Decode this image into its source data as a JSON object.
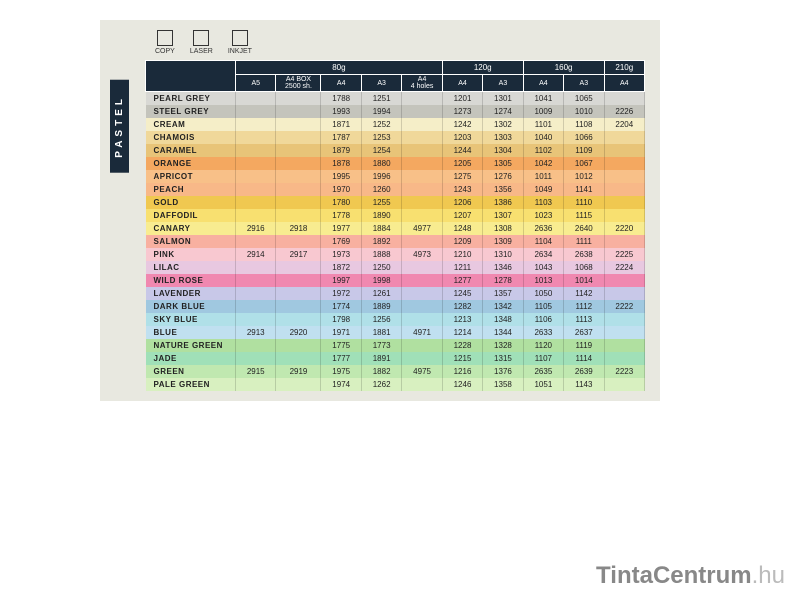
{
  "sideLabel": "PASTEL",
  "iconLabels": [
    "COPY",
    "LASER",
    "INKJET"
  ],
  "weightGroups": [
    "80g",
    "120g",
    "160g",
    "210g"
  ],
  "subHeaders": [
    "A5",
    "A4 BOX\n2500 sh.",
    "A4",
    "A3",
    "A4\n4 holes",
    "A4",
    "A3",
    "A4",
    "A3",
    "A4"
  ],
  "rows": [
    {
      "name": "PEARL GREY",
      "color": "#d8d8d4",
      "v": [
        "",
        "",
        "1788",
        "1251",
        "",
        "1201",
        "1301",
        "1041",
        "1065",
        ""
      ]
    },
    {
      "name": "STEEL GREY",
      "color": "#c4c4bc",
      "v": [
        "",
        "",
        "1993",
        "1994",
        "",
        "1273",
        "1274",
        "1009",
        "1010",
        "2226"
      ]
    },
    {
      "name": "CREAM",
      "color": "#f5eec8",
      "v": [
        "",
        "",
        "1871",
        "1252",
        "",
        "1242",
        "1302",
        "1101",
        "1108",
        "2204"
      ]
    },
    {
      "name": "CHAMOIS",
      "color": "#f0d89a",
      "v": [
        "",
        "",
        "1787",
        "1253",
        "",
        "1203",
        "1303",
        "1040",
        "1066",
        ""
      ]
    },
    {
      "name": "CARAMEL",
      "color": "#e8c478",
      "v": [
        "",
        "",
        "1879",
        "1254",
        "",
        "1244",
        "1304",
        "1102",
        "1109",
        ""
      ]
    },
    {
      "name": "ORANGE",
      "color": "#f4a860",
      "v": [
        "",
        "",
        "1878",
        "1880",
        "",
        "1205",
        "1305",
        "1042",
        "1067",
        ""
      ]
    },
    {
      "name": "APRICOT",
      "color": "#f8c088",
      "v": [
        "",
        "",
        "1995",
        "1996",
        "",
        "1275",
        "1276",
        "1011",
        "1012",
        ""
      ]
    },
    {
      "name": "PEACH",
      "color": "#f8b888",
      "v": [
        "",
        "",
        "1970",
        "1260",
        "",
        "1243",
        "1356",
        "1049",
        "1141",
        ""
      ]
    },
    {
      "name": "GOLD",
      "color": "#f0c850",
      "v": [
        "",
        "",
        "1780",
        "1255",
        "",
        "1206",
        "1386",
        "1103",
        "1110",
        ""
      ]
    },
    {
      "name": "DAFFODIL",
      "color": "#f8e070",
      "v": [
        "",
        "",
        "1778",
        "1890",
        "",
        "1207",
        "1307",
        "1023",
        "1115",
        ""
      ]
    },
    {
      "name": "CANARY",
      "color": "#f8ec90",
      "v": [
        "2916",
        "2918",
        "1977",
        "1884",
        "4977",
        "1248",
        "1308",
        "2636",
        "2640",
        "2220"
      ]
    },
    {
      "name": "SALMON",
      "color": "#f8b0a0",
      "v": [
        "",
        "",
        "1769",
        "1892",
        "",
        "1209",
        "1309",
        "1104",
        "1111",
        ""
      ]
    },
    {
      "name": "PINK",
      "color": "#f8c8d0",
      "v": [
        "2914",
        "2917",
        "1973",
        "1888",
        "4973",
        "1210",
        "1310",
        "2634",
        "2638",
        "2225"
      ]
    },
    {
      "name": "LILAC",
      "color": "#e8c8e0",
      "v": [
        "",
        "",
        "1872",
        "1250",
        "",
        "1211",
        "1346",
        "1043",
        "1068",
        "2224"
      ]
    },
    {
      "name": "WILD ROSE",
      "color": "#f088b0",
      "v": [
        "",
        "",
        "1997",
        "1998",
        "",
        "1277",
        "1278",
        "1013",
        "1014",
        ""
      ]
    },
    {
      "name": "LAVENDER",
      "color": "#c8c8e8",
      "v": [
        "",
        "",
        "1972",
        "1261",
        "",
        "1245",
        "1357",
        "1050",
        "1142",
        ""
      ]
    },
    {
      "name": "DARK BLUE",
      "color": "#a0c8e0",
      "v": [
        "",
        "",
        "1774",
        "1889",
        "",
        "1282",
        "1342",
        "1105",
        "1112",
        "2222"
      ]
    },
    {
      "name": "SKY BLUE",
      "color": "#b0e0e8",
      "v": [
        "",
        "",
        "1798",
        "1256",
        "",
        "1213",
        "1348",
        "1106",
        "1113",
        ""
      ]
    },
    {
      "name": "BLUE",
      "color": "#c0e0f0",
      "v": [
        "2913",
        "2920",
        "1971",
        "1881",
        "4971",
        "1214",
        "1344",
        "2633",
        "2637",
        ""
      ]
    },
    {
      "name": "NATURE GREEN",
      "color": "#b0e0a0",
      "v": [
        "",
        "",
        "1775",
        "1773",
        "",
        "1228",
        "1328",
        "1120",
        "1119",
        ""
      ]
    },
    {
      "name": "JADE",
      "color": "#a0e0b8",
      "v": [
        "",
        "",
        "1777",
        "1891",
        "",
        "1215",
        "1315",
        "1107",
        "1114",
        ""
      ]
    },
    {
      "name": "GREEN",
      "color": "#c0e8b0",
      "v": [
        "2915",
        "2919",
        "1975",
        "1882",
        "4975",
        "1216",
        "1376",
        "2635",
        "2639",
        "2223"
      ]
    },
    {
      "name": "PALE GREEN",
      "color": "#d8f0c0",
      "v": [
        "",
        "",
        "1974",
        "1262",
        "",
        "1246",
        "1358",
        "1051",
        "1143",
        ""
      ]
    }
  ],
  "watermark": {
    "bold": "TintaCentrum",
    "light": ".hu"
  }
}
